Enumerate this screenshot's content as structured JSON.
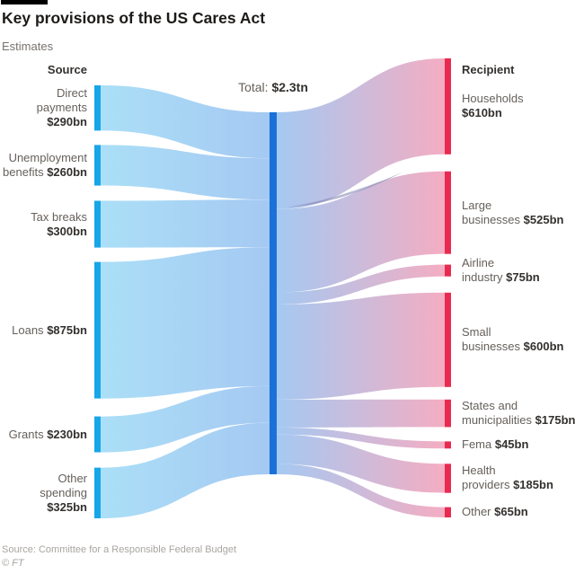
{
  "header": {
    "title": "Key provisions of the US Cares Act",
    "subtitle": "Estimates"
  },
  "chart_data": {
    "type": "sankey",
    "unit": "$bn",
    "total_bn": 2280,
    "total": {
      "label": "Total:",
      "value": "$2.3tn"
    },
    "source_header": "Source",
    "recipient_header": "Recipient",
    "sources": [
      {
        "name": "Direct payments",
        "lines": [
          "Direct",
          "payments"
        ],
        "value_bn": 290,
        "value_label": "$290bn",
        "value_own_line": true
      },
      {
        "name": "Unemployment benefits",
        "lines": [
          "Unemployment",
          "benefits"
        ],
        "value_bn": 260,
        "value_label": "$260bn",
        "value_own_line": false
      },
      {
        "name": "Tax breaks",
        "lines": [
          "Tax breaks"
        ],
        "value_bn": 300,
        "value_label": "$300bn",
        "value_own_line": true
      },
      {
        "name": "Loans",
        "lines": [
          "Loans"
        ],
        "value_bn": 875,
        "value_label": "$875bn",
        "value_own_line": false
      },
      {
        "name": "Grants",
        "lines": [
          "Grants"
        ],
        "value_bn": 230,
        "value_label": "$230bn",
        "value_own_line": false
      },
      {
        "name": "Other spending",
        "lines": [
          "Other",
          "spending"
        ],
        "value_bn": 325,
        "value_label": "$325bn",
        "value_own_line": true
      }
    ],
    "recipients": [
      {
        "name": "Households",
        "lines": [
          "Households"
        ],
        "value_bn": 610,
        "value_label": "$610bn",
        "value_own_line": true
      },
      {
        "name": "Large businesses",
        "lines": [
          "Large",
          "businesses"
        ],
        "value_bn": 525,
        "value_label": "$525bn",
        "value_own_line": false
      },
      {
        "name": "Airline industry",
        "lines": [
          "Airline",
          "industry"
        ],
        "value_bn": 75,
        "value_label": "$75bn",
        "value_own_line": false
      },
      {
        "name": "Small businesses",
        "lines": [
          "Small",
          "businesses"
        ],
        "value_bn": 600,
        "value_label": "$600bn",
        "value_own_line": false
      },
      {
        "name": "States and municipalities",
        "lines": [
          "States and",
          "municipalities"
        ],
        "value_bn": 175,
        "value_label": "$175bn",
        "value_own_line": false
      },
      {
        "name": "Fema",
        "lines": [
          "Fema"
        ],
        "value_bn": 45,
        "value_label": "$45bn",
        "value_own_line": false
      },
      {
        "name": "Health providers",
        "lines": [
          "Health",
          "providers"
        ],
        "value_bn": 185,
        "value_label": "$185bn",
        "value_own_line": false
      },
      {
        "name": "Other",
        "lines": [
          "Other"
        ],
        "value_bn": 65,
        "value_label": "$65bn",
        "value_own_line": false
      }
    ],
    "colors": {
      "source_node": "#17a6e8",
      "source_flow": "#abdff7",
      "center_flow": "#a5c9f2",
      "center_node": "#1a71d7",
      "recipient_flow": "#f4adc2",
      "recipient_node": "#e92a50",
      "overlap_lens": "#7b80b0"
    }
  },
  "footer": {
    "source": "Source: Committee for a Responsible Federal Budget",
    "copyright": "© FT"
  }
}
